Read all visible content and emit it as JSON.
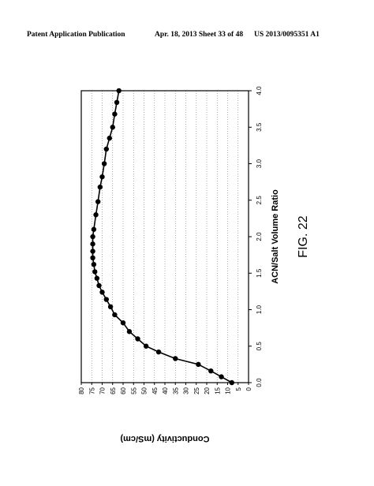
{
  "header": {
    "left": "Patent Application Publication",
    "middle": "Apr. 18, 2013  Sheet 33 of 48",
    "right": "US 2013/0095351 A1"
  },
  "chart_data": {
    "type": "line",
    "figure_label": "FIG. 22",
    "x_label": "ACN/Salt Volume Ratio",
    "y_label": "Conductivity (mS/cm)",
    "x": [
      0.0,
      0.08,
      0.16,
      0.25,
      0.33,
      0.42,
      0.5,
      0.6,
      0.7,
      0.82,
      0.93,
      1.04,
      1.14,
      1.24,
      1.33,
      1.43,
      1.52,
      1.62,
      1.71,
      1.8,
      1.9,
      2.0,
      2.1,
      2.3,
      2.48,
      2.68,
      2.82,
      3.0,
      3.2,
      3.35,
      3.5,
      3.68,
      3.84,
      4.0
    ],
    "series": [
      {
        "name": "Conductivity",
        "color": "#000000",
        "values": [
          8,
          13,
          18,
          24,
          35,
          43,
          49,
          53,
          57,
          60,
          64,
          66,
          68,
          70,
          71.5,
          72.5,
          73.5,
          74,
          74.5,
          74.5,
          74.5,
          74.5,
          74,
          73,
          72,
          71,
          70,
          69,
          68,
          66.5,
          65,
          64,
          63,
          62
        ]
      }
    ],
    "xlim": [
      0,
      4
    ],
    "xticks": [
      {
        "value": 0,
        "label": "0.0"
      },
      {
        "value": 0.5,
        "label": "0.5"
      },
      {
        "value": 1,
        "label": "1.0"
      },
      {
        "value": 1.5,
        "label": "1.5"
      },
      {
        "value": 2,
        "label": "2.0"
      },
      {
        "value": 2.5,
        "label": "2.5"
      },
      {
        "value": 3,
        "label": "3.0"
      },
      {
        "value": 3.5,
        "label": "3.5"
      },
      {
        "value": 4,
        "label": "4.0"
      }
    ],
    "ylim": [
      0,
      80
    ],
    "yticks": [
      0,
      5,
      10,
      15,
      20,
      25,
      30,
      35,
      40,
      45,
      50,
      55,
      60,
      65,
      70,
      75,
      80
    ],
    "grid": true
  }
}
